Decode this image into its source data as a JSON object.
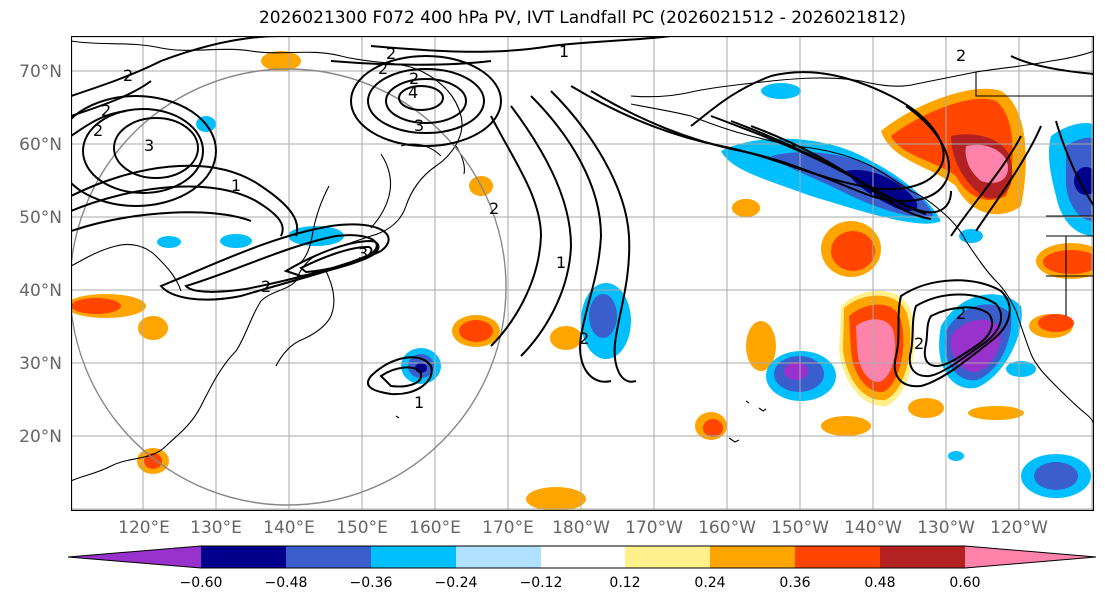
{
  "title": "2026021300 F072 400 hPa PV, IVT Landfall PC (2026021512 - 2026021812)",
  "map": {
    "lat_labels": [
      "70°N",
      "60°N",
      "50°N",
      "40°N",
      "30°N",
      "20°N"
    ],
    "lon_labels": [
      "120°E",
      "130°E",
      "140°E",
      "150°E",
      "160°E",
      "170°E",
      "180°W",
      "170°W",
      "160°W",
      "150°W",
      "140°W",
      "130°W",
      "120°W"
    ],
    "contour_labels": [
      "1",
      "1",
      "1",
      "1",
      "2",
      "2",
      "2",
      "2",
      "2",
      "2",
      "2",
      "2",
      "2",
      "2",
      "2",
      "2",
      "3",
      "3",
      "3",
      "4"
    ]
  },
  "colorbar": {
    "tick_labels": [
      "−0.60",
      "−0.48",
      "−0.36",
      "−0.24",
      "−0.12",
      "0.12",
      "0.24",
      "0.36",
      "0.48",
      "0.60"
    ],
    "colors": [
      "#9932cc",
      "#00008b",
      "#3a5fcd",
      "#00bfff",
      "#b0e2ff",
      "#ffffff",
      "#fff08c",
      "#ffa500",
      "#ff4500",
      "#b22222",
      "#ff82ab"
    ]
  }
}
